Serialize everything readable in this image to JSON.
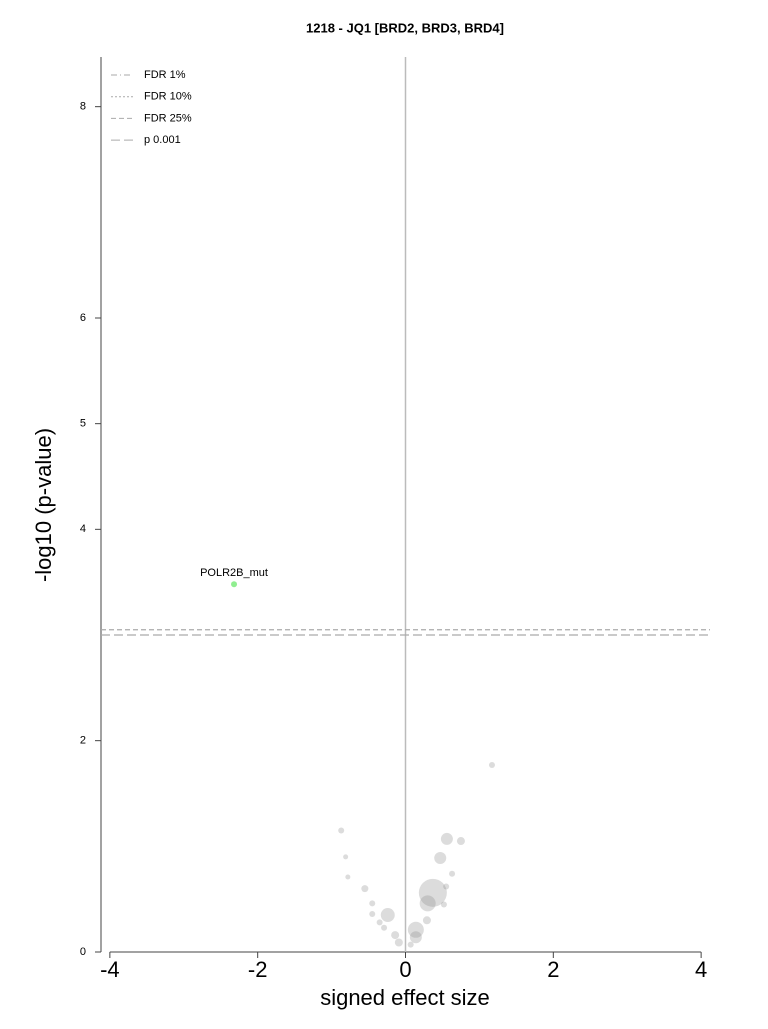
{
  "chart_data": {
    "type": "scatter",
    "title": "1218 - JQ1 [BRD2, BRD3, BRD4]",
    "x_label": "signed effect size",
    "y_label": "-log10 (p-value)",
    "xlim": [
      -4.12,
      4.12
    ],
    "ylim": [
      0,
      8.47
    ],
    "xticks": [
      -4,
      -2,
      0,
      2,
      4
    ],
    "yticks": [
      0,
      2,
      4,
      5,
      6,
      8
    ],
    "points": {
      "color": "#8c8c8c",
      "opacity": 0.3,
      "x": [
        1.17,
        -0.87,
        -0.81,
        -0.78,
        0.56,
        0.75,
        0.47,
        0.63,
        0.37,
        0.3,
        0.55,
        -0.55,
        -0.24,
        -0.45,
        -0.45,
        -0.35,
        -0.29,
        -0.14,
        -0.09,
        0.14,
        0.14,
        0.07,
        0.29,
        0.52
      ],
      "y": [
        1.77,
        1.15,
        0.9,
        0.71,
        1.07,
        1.05,
        0.89,
        0.74,
        0.56,
        0.46,
        0.62,
        0.6,
        0.35,
        0.46,
        0.36,
        0.28,
        0.23,
        0.16,
        0.09,
        0.21,
        0.14,
        0.07,
        0.3,
        0.45
      ],
      "sizes": [
        3,
        3,
        2.5,
        2.5,
        6,
        4,
        6,
        3,
        14,
        8,
        3,
        3.5,
        7,
        3,
        3,
        3,
        3,
        4,
        4,
        8,
        6,
        3,
        4,
        3
      ]
    },
    "highlight": {
      "label": "POLR2B_mut",
      "color": "#90ee90",
      "x": -2.32,
      "y": 3.48
    },
    "thresholds": [
      {
        "name": "FDR 1%",
        "style": "dashdot",
        "value": null
      },
      {
        "name": "FDR 10%",
        "style": "dotted",
        "value": null
      },
      {
        "name": "FDR 25%",
        "style": "dashed",
        "value": 3.05
      },
      {
        "name": "p 0.001",
        "style": "longdash",
        "value": 3.0
      }
    ]
  }
}
